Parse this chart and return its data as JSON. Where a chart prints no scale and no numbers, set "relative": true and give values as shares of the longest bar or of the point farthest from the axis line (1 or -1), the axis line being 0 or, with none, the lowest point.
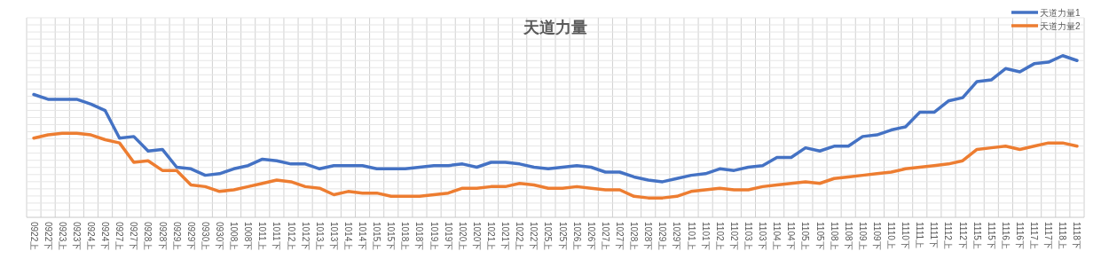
{
  "chart_data": {
    "type": "line",
    "title": "天道力量",
    "relative": true,
    "grid": true,
    "legend": "top right",
    "marker": "none",
    "line_style": "solid",
    "categories": [
      "0922上",
      "0922下",
      "0923上",
      "0923下",
      "0924上",
      "0924下",
      "0927上",
      "0927下",
      "0928上",
      "0928下",
      "0929上",
      "0929下",
      "0930上",
      "0930下",
      "1008上",
      "1008下",
      "1011上",
      "1011下",
      "1012上",
      "1012下",
      "1013上",
      "1013下",
      "1014上",
      "1014下",
      "1015上",
      "1015下",
      "1018上",
      "1018下",
      "1019上",
      "1019下",
      "1020上",
      "1020下",
      "1021上",
      "1021下",
      "1022上",
      "1022下",
      "1025上",
      "1025下",
      "1026上",
      "1026下",
      "1027上",
      "1027下",
      "1028上",
      "1028下",
      "1029上",
      "1029下",
      "1101上",
      "1101下",
      "1102上",
      "1102下",
      "1103上",
      "1103下",
      "1104上",
      "1104下",
      "1105上",
      "1105下",
      "1108上",
      "1108下",
      "1109上",
      "1109下",
      "1110上",
      "1110下",
      "1111上",
      "1111下",
      "1112上",
      "1112下",
      "1115上",
      "1115下",
      "1116上",
      "1116下",
      "1117上",
      "1117下",
      "1118上",
      "1118下"
    ],
    "series": [
      {
        "name": "天道力量1",
        "color": "#4472c4",
        "values": [
          0.76,
          0.73,
          0.73,
          0.73,
          0.7,
          0.66,
          0.49,
          0.5,
          0.41,
          0.42,
          0.31,
          0.3,
          0.26,
          0.27,
          0.3,
          0.32,
          0.36,
          0.35,
          0.33,
          0.33,
          0.3,
          0.32,
          0.32,
          0.32,
          0.3,
          0.3,
          0.3,
          0.31,
          0.32,
          0.32,
          0.33,
          0.31,
          0.34,
          0.34,
          0.33,
          0.31,
          0.3,
          0.31,
          0.32,
          0.31,
          0.28,
          0.28,
          0.25,
          0.23,
          0.22,
          0.24,
          0.26,
          0.27,
          0.3,
          0.29,
          0.31,
          0.32,
          0.37,
          0.37,
          0.43,
          0.41,
          0.44,
          0.44,
          0.5,
          0.51,
          0.54,
          0.56,
          0.65,
          0.65,
          0.72,
          0.74,
          0.84,
          0.85,
          0.92,
          0.9,
          0.95,
          0.96,
          1,
          0.97
        ]
      },
      {
        "name": "天道力量2",
        "color": "#ed7d31",
        "values": [
          0.49,
          0.51,
          0.52,
          0.52,
          0.51,
          0.48,
          0.46,
          0.34,
          0.35,
          0.29,
          0.29,
          0.2,
          0.19,
          0.16,
          0.17,
          0.19,
          0.21,
          0.23,
          0.22,
          0.19,
          0.18,
          0.14,
          0.16,
          0.15,
          0.15,
          0.13,
          0.13,
          0.13,
          0.14,
          0.15,
          0.18,
          0.18,
          0.19,
          0.19,
          0.21,
          0.2,
          0.18,
          0.18,
          0.19,
          0.18,
          0.17,
          0.17,
          0.13,
          0.12,
          0.12,
          0.13,
          0.16,
          0.17,
          0.18,
          0.17,
          0.17,
          0.19,
          0.2,
          0.21,
          0.22,
          0.21,
          0.24,
          0.25,
          0.26,
          0.27,
          0.28,
          0.3,
          0.31,
          0.32,
          0.33,
          0.35,
          0.42,
          0.43,
          0.44,
          0.42,
          0.44,
          0.46,
          0.46,
          0.44
        ]
      }
    ]
  }
}
